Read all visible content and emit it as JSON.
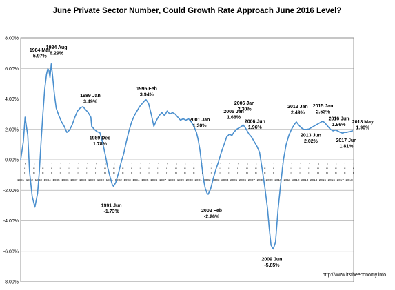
{
  "chart_data": {
    "type": "line",
    "title": "June Private Sector Number, Could Growth Rate Approach June 2016 Level?",
    "source": "http://www.itstheeconomy.info",
    "xlabel": "",
    "ylabel": "",
    "ylim": [
      -8,
      8
    ],
    "yticks": [
      "8.00%",
      "6.00%",
      "4.00%",
      "2.00%",
      "0.00%",
      "-2.00%",
      "-4.00%",
      "-6.00%",
      "-8.00%"
    ],
    "ytick_values": [
      8,
      6,
      4,
      2,
      0,
      -2,
      -4,
      -6,
      -8
    ],
    "xlim": [
      1981.0,
      2018.5
    ],
    "xticks": [
      "1981",
      "1982",
      "1983",
      "1984",
      "1985",
      "1986",
      "1987",
      "1988",
      "1989",
      "1990",
      "1991",
      "1992",
      "1993",
      "1994",
      "1995",
      "1996",
      "1997",
      "1998",
      "1999",
      "2000",
      "2001",
      "2002",
      "2003",
      "2004",
      "2005",
      "2006",
      "2007",
      "2008",
      "2009",
      "2010",
      "2011",
      "2012",
      "2013",
      "2014",
      "2015",
      "2016",
      "2017",
      "2018"
    ],
    "xtick_month_label": "J\nu\nn",
    "grid": "horizontal",
    "legend": "none",
    "series_color": "#4a8fce",
    "series": [
      {
        "x": [
          1981.0,
          1981.3,
          1981.5,
          1981.8,
          1982.0,
          1982.3,
          1982.6,
          1982.9,
          1983.1,
          1983.3,
          1983.5,
          1983.7,
          1983.9,
          1984.05,
          1984.17,
          1984.3,
          1984.45,
          1984.58,
          1984.8,
          1985.0,
          1985.3,
          1985.6,
          1985.9,
          1986.2,
          1986.5,
          1986.8,
          1987.1,
          1987.4,
          1987.7,
          1988.0,
          1988.3,
          1988.6,
          1988.9,
          1989.0,
          1989.3,
          1989.6,
          1989.92,
          1990.2,
          1990.5,
          1990.8,
          1991.1,
          1991.3,
          1991.45,
          1991.7,
          1992.0,
          1992.3,
          1992.6,
          1992.9,
          1993.2,
          1993.5,
          1993.8,
          1994.1,
          1994.4,
          1994.7,
          1995.0,
          1995.12,
          1995.4,
          1995.7,
          1996.0,
          1996.3,
          1996.6,
          1996.9,
          1997.2,
          1997.5,
          1997.8,
          1998.1,
          1998.4,
          1998.7,
          1999.0,
          1999.3,
          1999.6,
          1999.9,
          2000.2,
          2000.5,
          2000.8,
          2001.0,
          2001.2,
          2001.4,
          2001.6,
          2001.8,
          2002.0,
          2002.12,
          2002.4,
          2002.7,
          2003.0,
          2003.3,
          2003.6,
          2003.9,
          2004.2,
          2004.5,
          2004.8,
          2005.0,
          2005.3,
          2005.6,
          2005.9,
          2006.05,
          2006.3,
          2006.45,
          2006.7,
          2007.0,
          2007.3,
          2007.6,
          2007.9,
          2008.2,
          2008.5,
          2008.8,
          2009.0,
          2009.2,
          2009.45,
          2009.7,
          2010.0,
          2010.3,
          2010.6,
          2010.9,
          2011.2,
          2011.5,
          2011.8,
          2012.05,
          2012.3,
          2012.6,
          2012.9,
          2013.2,
          2013.45,
          2013.7,
          2014.0,
          2014.3,
          2014.6,
          2014.9,
          2015.05,
          2015.3,
          2015.6,
          2015.9,
          2016.2,
          2016.45,
          2016.7,
          2017.0,
          2017.3,
          2017.45,
          2017.7,
          2018.0,
          2018.37
        ],
        "y": [
          0.0,
          1.2,
          2.8,
          1.6,
          -0.8,
          -2.4,
          -3.1,
          -2.2,
          -0.8,
          1.2,
          3.0,
          4.6,
          5.6,
          5.97,
          5.9,
          5.4,
          6.29,
          5.6,
          4.3,
          3.4,
          2.9,
          2.5,
          2.2,
          1.8,
          1.95,
          2.3,
          2.8,
          3.2,
          3.4,
          3.49,
          3.3,
          3.1,
          2.8,
          2.2,
          2.0,
          1.85,
          1.78,
          1.2,
          0.4,
          -0.5,
          -1.2,
          -1.6,
          -1.73,
          -1.5,
          -0.9,
          -0.2,
          0.4,
          1.2,
          1.9,
          2.5,
          2.9,
          3.2,
          3.5,
          3.7,
          3.9,
          3.94,
          3.7,
          3.0,
          2.2,
          2.6,
          2.9,
          3.1,
          2.9,
          3.2,
          3.0,
          3.1,
          3.0,
          2.8,
          2.6,
          2.7,
          2.6,
          2.7,
          2.5,
          2.2,
          1.8,
          1.3,
          0.6,
          -0.4,
          -1.3,
          -1.9,
          -2.2,
          -2.26,
          -1.9,
          -1.2,
          -0.6,
          -0.1,
          0.5,
          1.0,
          1.5,
          1.68,
          1.6,
          1.8,
          2.0,
          2.1,
          2.2,
          2.3,
          2.1,
          1.96,
          1.7,
          1.5,
          1.2,
          0.9,
          0.5,
          -0.6,
          -1.8,
          -3.2,
          -4.5,
          -5.6,
          -5.85,
          -5.4,
          -3.2,
          -1.5,
          0.0,
          1.0,
          1.6,
          2.0,
          2.3,
          2.49,
          2.3,
          2.1,
          2.0,
          2.0,
          2.02,
          2.1,
          2.2,
          2.3,
          2.4,
          2.5,
          2.53,
          2.4,
          2.2,
          2.0,
          1.9,
          1.96,
          1.9,
          1.8,
          1.75,
          1.81,
          1.8,
          1.85,
          1.9
        ]
      }
    ],
    "annotations": [
      {
        "x": 1984.17,
        "y": 5.97,
        "lines": [
          "1984 Mar",
          "5.97%"
        ]
      },
      {
        "x": 1984.58,
        "y": 6.29,
        "lines": [
          "1984 Aug",
          "6.29%"
        ]
      },
      {
        "x": 1989.0,
        "y": 3.49,
        "lines": [
          "1989 Jan",
          "3.49%"
        ]
      },
      {
        "x": 1989.92,
        "y": 1.78,
        "lines": [
          "1989 Dec",
          "1.78%"
        ]
      },
      {
        "x": 1991.45,
        "y": -1.73,
        "lines": [
          "1991 Jun",
          "-1.73%"
        ]
      },
      {
        "x": 1995.12,
        "y": 3.94,
        "lines": [
          "1995 Feb",
          "3.94%"
        ]
      },
      {
        "x": 2001.0,
        "y": 1.3,
        "lines": [
          "2001 Jan",
          "1.30%"
        ]
      },
      {
        "x": 2002.12,
        "y": -2.26,
        "lines": [
          "2002 Feb",
          "-2.26%"
        ]
      },
      {
        "x": 2005.0,
        "y": 1.68,
        "lines": [
          "2005 Jan",
          "1.68%"
        ]
      },
      {
        "x": 2006.05,
        "y": 2.3,
        "lines": [
          "2006 Jan",
          "2.30%"
        ]
      },
      {
        "x": 2006.45,
        "y": 1.96,
        "lines": [
          "2006 Jun",
          "1.96%"
        ]
      },
      {
        "x": 2009.45,
        "y": -5.85,
        "lines": [
          "2009 Jun",
          "-5.85%"
        ]
      },
      {
        "x": 2012.05,
        "y": 2.49,
        "lines": [
          "2012 Jan",
          "2.49%"
        ]
      },
      {
        "x": 2013.45,
        "y": 2.02,
        "lines": [
          "2013 Jun",
          "2.02%"
        ]
      },
      {
        "x": 2015.05,
        "y": 2.53,
        "lines": [
          "2015 Jan",
          "2.53%"
        ]
      },
      {
        "x": 2016.45,
        "y": 1.96,
        "lines": [
          "2016 Jun",
          "1.96%"
        ]
      },
      {
        "x": 2017.45,
        "y": 1.81,
        "lines": [
          "2017 Jun",
          "1.81%"
        ]
      },
      {
        "x": 2018.37,
        "y": 1.9,
        "lines": [
          "2018 May",
          "1.90%"
        ]
      }
    ]
  }
}
